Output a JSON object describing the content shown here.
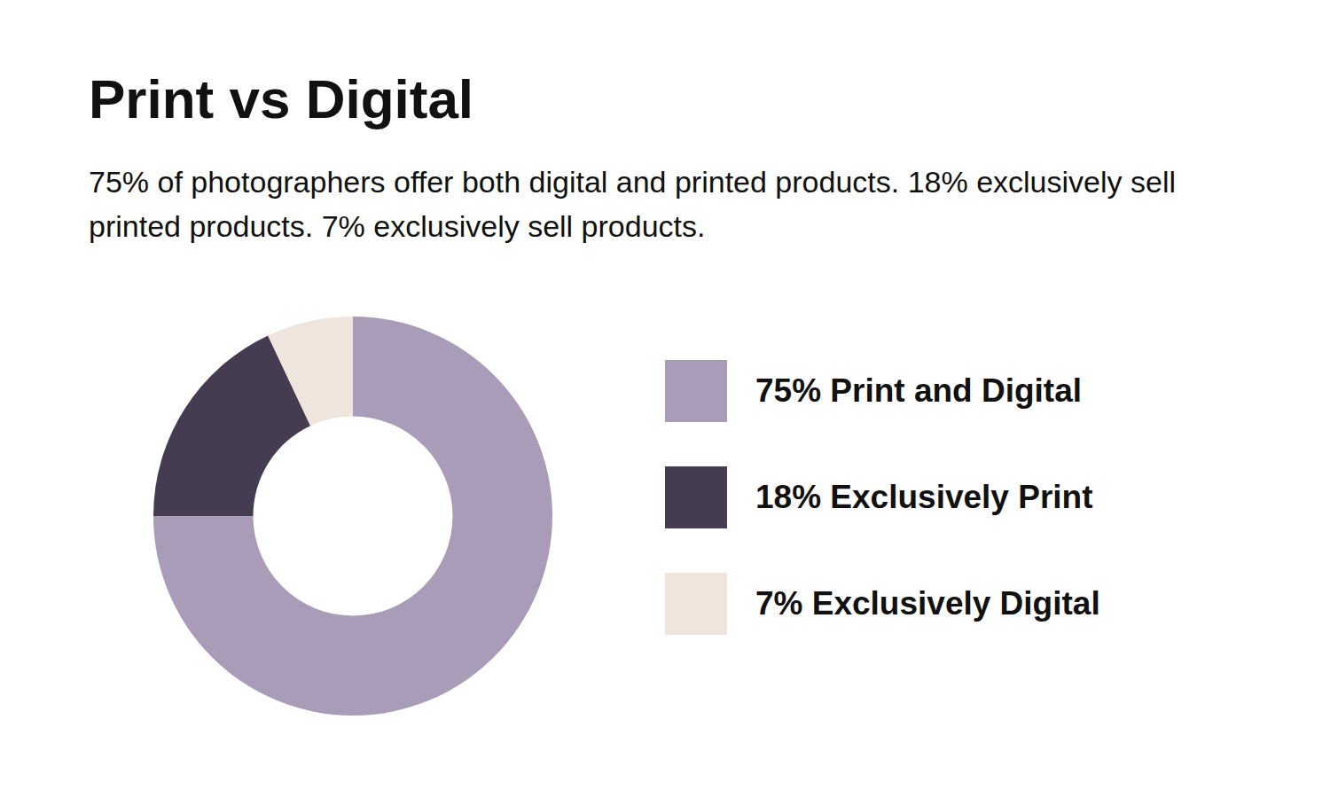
{
  "chart_data": {
    "type": "pie",
    "title": "Print vs Digital",
    "subtitle": "75% of photographers offer both digital and printed products. 18% exclusively sell printed products. 7% exclusively sell products.",
    "categories": [
      "75% Print and Digital",
      "18% Exclusively Print",
      "7% Exclusively Digital"
    ],
    "values": [
      75,
      18,
      7
    ],
    "colors": [
      "#a89cb8",
      "#453c52",
      "#efe5dc"
    ],
    "legend": "right"
  }
}
